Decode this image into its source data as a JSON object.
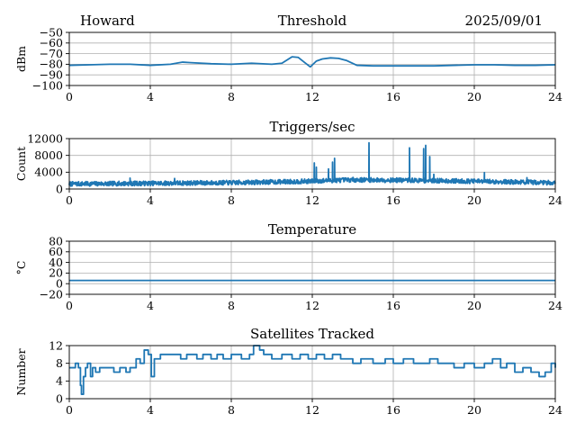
{
  "header": {
    "station": "Howard",
    "date": "2025/09/01"
  },
  "chart_data": [
    {
      "type": "line",
      "title": "Threshold",
      "ylabel": "dBm",
      "xlim": [
        0,
        24
      ],
      "ylim": [
        -100,
        -50
      ],
      "xticks": [
        "0",
        "4",
        "8",
        "12",
        "16",
        "20",
        "24"
      ],
      "yticks": [
        "−100",
        "−90",
        "−80",
        "−70",
        "−60",
        "−50"
      ],
      "ytick_values": [
        -100,
        -90,
        -80,
        -70,
        -60,
        -50
      ],
      "grid": true,
      "color": "#1f77b4",
      "x": [
        0,
        1,
        2,
        3,
        4,
        5,
        5.6,
        6,
        7,
        8,
        9,
        10,
        10.5,
        11,
        11.3,
        11.6,
        11.9,
        12.2,
        12.5,
        12.9,
        13.3,
        13.7,
        14.2,
        15,
        16,
        17,
        18,
        19,
        20,
        21,
        22,
        23,
        24
      ],
      "y": [
        -81,
        -80.5,
        -80,
        -80,
        -81,
        -80,
        -78,
        -78.5,
        -79.5,
        -80,
        -79,
        -80,
        -79,
        -73,
        -73.5,
        -78,
        -82.5,
        -77,
        -75,
        -74,
        -74.5,
        -76.5,
        -81,
        -81.5,
        -81.5,
        -81.5,
        -81.5,
        -81,
        -80.5,
        -80.5,
        -81,
        -81,
        -80.5
      ]
    },
    {
      "type": "line",
      "title": "Triggers/sec",
      "ylabel": "Count",
      "xlim": [
        0,
        24
      ],
      "ylim": [
        0,
        12000
      ],
      "xticks": [
        "0",
        "4",
        "8",
        "12",
        "16",
        "20",
        "24"
      ],
      "yticks": [
        "0",
        "4000",
        "8000",
        "12000"
      ],
      "ytick_values": [
        0,
        4000,
        8000,
        12000
      ],
      "grid": true,
      "color": "#1f77b4",
      "baseline": [
        0,
        1200,
        8,
        1500,
        11.5,
        1800,
        14,
        2200,
        18,
        2000,
        24,
        1500
      ],
      "noise": 1100,
      "spikes": [
        [
          3,
          2600
        ],
        [
          5.2,
          2500
        ],
        [
          12.1,
          6200
        ],
        [
          12.2,
          5200
        ],
        [
          12.8,
          4800
        ],
        [
          13.0,
          6400
        ],
        [
          13.1,
          7300
        ],
        [
          14.8,
          11000
        ],
        [
          16.8,
          9800
        ],
        [
          17.5,
          9600
        ],
        [
          17.6,
          10400
        ],
        [
          17.8,
          7700
        ],
        [
          18.0,
          3500
        ],
        [
          20.5,
          3900
        ],
        [
          22.6,
          2700
        ]
      ]
    },
    {
      "type": "line",
      "title": "Temperature",
      "ylabel": "°C",
      "xlim": [
        0,
        24
      ],
      "ylim": [
        -20,
        80
      ],
      "xticks": [
        "0",
        "4",
        "8",
        "12",
        "16",
        "20",
        "24"
      ],
      "yticks": [
        "−20",
        "0",
        "20",
        "40",
        "60",
        "80"
      ],
      "ytick_values": [
        -20,
        0,
        20,
        40,
        60,
        80
      ],
      "grid": true,
      "color": "#1f77b4",
      "x": [
        0,
        24
      ],
      "y": [
        6,
        6
      ]
    },
    {
      "type": "line",
      "title": "Satellites Tracked",
      "ylabel": "Number",
      "xlim": [
        0,
        24
      ],
      "ylim": [
        0,
        12
      ],
      "xticks": [
        "0",
        "4",
        "8",
        "12",
        "16",
        "20",
        "24"
      ],
      "yticks": [
        "0",
        "4",
        "8",
        "12"
      ],
      "ytick_values": [
        0,
        4,
        8,
        12
      ],
      "grid": true,
      "color": "#1f77b4",
      "steps": [
        [
          0,
          7
        ],
        [
          0.3,
          8
        ],
        [
          0.45,
          7
        ],
        [
          0.55,
          3
        ],
        [
          0.6,
          1
        ],
        [
          0.7,
          5
        ],
        [
          0.8,
          7
        ],
        [
          0.9,
          8
        ],
        [
          1.05,
          5
        ],
        [
          1.15,
          7
        ],
        [
          1.3,
          6
        ],
        [
          1.5,
          7
        ],
        [
          2,
          7
        ],
        [
          2.2,
          6
        ],
        [
          2.5,
          7
        ],
        [
          2.8,
          6
        ],
        [
          3,
          7
        ],
        [
          3.3,
          9
        ],
        [
          3.5,
          8
        ],
        [
          3.7,
          11
        ],
        [
          3.9,
          10
        ],
        [
          4.05,
          5
        ],
        [
          4.2,
          9
        ],
        [
          4.5,
          10
        ],
        [
          5.5,
          9
        ],
        [
          5.8,
          10
        ],
        [
          6.3,
          9
        ],
        [
          6.6,
          10
        ],
        [
          7,
          9
        ],
        [
          7.3,
          10
        ],
        [
          7.6,
          9
        ],
        [
          8.0,
          10
        ],
        [
          8.5,
          9
        ],
        [
          8.9,
          10
        ],
        [
          9.1,
          12
        ],
        [
          9.4,
          11
        ],
        [
          9.6,
          10
        ],
        [
          10.0,
          9
        ],
        [
          10.5,
          10
        ],
        [
          11,
          9
        ],
        [
          11.4,
          10
        ],
        [
          11.8,
          9
        ],
        [
          12.2,
          10
        ],
        [
          12.6,
          9
        ],
        [
          13.0,
          10
        ],
        [
          13.4,
          9
        ],
        [
          14,
          8
        ],
        [
          14.4,
          9
        ],
        [
          15,
          8
        ],
        [
          15.6,
          9
        ],
        [
          16,
          8
        ],
        [
          16.5,
          9
        ],
        [
          17,
          8
        ],
        [
          17.8,
          9
        ],
        [
          18.2,
          8
        ],
        [
          19,
          7
        ],
        [
          19.5,
          8
        ],
        [
          20,
          7
        ],
        [
          20.5,
          8
        ],
        [
          20.9,
          9
        ],
        [
          21.3,
          7
        ],
        [
          21.6,
          8
        ],
        [
          22,
          6
        ],
        [
          22.4,
          7
        ],
        [
          22.8,
          6
        ],
        [
          23.2,
          5
        ],
        [
          23.5,
          6
        ],
        [
          23.8,
          8
        ],
        [
          24,
          7
        ]
      ]
    }
  ]
}
